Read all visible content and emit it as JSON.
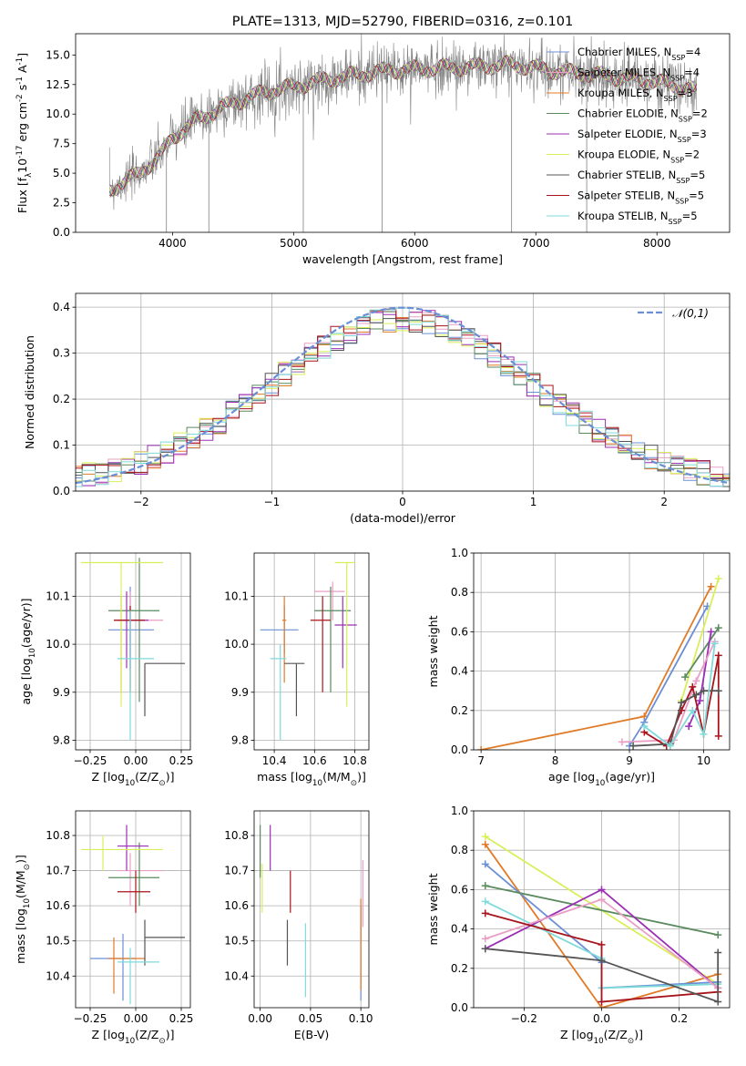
{
  "colors": {
    "Chabrier MILES": "#6b8fd6",
    "Salpeter MILES": "#e99fc4",
    "Kroupa MILES": "#e07b28",
    "Chabrier ELODIE": "#5a8a5e",
    "Salpeter ELODIE": "#9b2fb5",
    "Kroupa ELODIE": "#d9ef5a",
    "Chabrier STELIB": "#555555",
    "Salpeter STELIB": "#a8141c",
    "Kroupa STELIB": "#7fdada",
    "data": "#808080",
    "gauss": "#6a8fd6"
  },
  "chart_data": [
    {
      "id": "spectrum",
      "type": "line",
      "title": "PLATE=1313, MJD=52790, FIBERID=0316, z=0.101",
      "xlabel": "wavelength [Angstrom, rest frame]",
      "ylabel": "Flux [f$_λ$10$^{-17}$ erg cm$^{-2}$ s$^{-1}$ A$^{-1}$]",
      "xlim": [
        3200,
        8600
      ],
      "ylim": [
        0,
        16.8
      ],
      "xticks": [
        4000,
        5000,
        6000,
        7000,
        8000
      ],
      "yticks": [
        0.0,
        2.5,
        5.0,
        7.5,
        10.0,
        12.5,
        15.0
      ],
      "grid": false,
      "legend": [
        "Chabrier MILES, N$_{SSP}$=4",
        "Salpeter MILES, N$_{SSP}$=4",
        "Kroupa MILES, N$_{SSP}$=3",
        "Chabrier ELODIE, N$_{SSP}$=2",
        "Salpeter ELODIE, N$_{SSP}$=3",
        "Kroupa ELODIE, N$_{SSP}$=2",
        "Chabrier STELIB, N$_{SSP}$=5",
        "Salpeter STELIB, N$_{SSP}$=5",
        "Kroupa STELIB, N$_{SSP}$=5"
      ],
      "legend_placement": "right",
      "continuum": {
        "x": [
          3480,
          3700,
          3900,
          4000,
          4200,
          4400,
          4600,
          4800,
          5000,
          5200,
          5500,
          5800,
          6000,
          6200,
          6500,
          6800,
          7000,
          7200,
          7500,
          7800,
          8000,
          8200,
          8300
        ],
        "y": [
          3.6,
          4.8,
          6.5,
          8.0,
          9.5,
          10.5,
          11.3,
          12.0,
          12.3,
          12.8,
          13.3,
          13.7,
          13.8,
          13.9,
          14.0,
          14.2,
          13.9,
          13.6,
          13.3,
          13.0,
          12.7,
          12.3,
          12.0
        ]
      }
    },
    {
      "id": "residuals",
      "type": "line",
      "xlabel": "(data-model)/error",
      "ylabel": "Normed distribution",
      "xlim": [
        -2.5,
        2.5
      ],
      "ylim": [
        0,
        0.43
      ],
      "xticks": [
        -2,
        -1,
        0,
        1,
        2
      ],
      "yticks": [
        0.0,
        0.1,
        0.2,
        0.3,
        0.4
      ],
      "grid": true,
      "legend": [
        "$\\mathcal{N}(0,1)$"
      ],
      "legend_placement": "upper right"
    },
    {
      "id": "age-vs-Z",
      "type": "scatter",
      "xlabel": "Z [log$_{10}$(Z/Z$_\\odot$)]",
      "ylabel": "age  [log$_{10}$(age/yr)]",
      "xlim": [
        -0.33,
        0.3
      ],
      "ylim": [
        9.78,
        10.19
      ],
      "xticks": [
        -0.25,
        0.0,
        0.25
      ],
      "xticklabels": [
        "−0.25",
        "0.00",
        "0.25"
      ],
      "yticks": [
        9.8,
        9.9,
        10.0,
        10.1
      ],
      "grid": true,
      "points": [
        {
          "s": "Chabrier MILES",
          "x": -0.03,
          "y": 10.03,
          "xe": [
            -0.15,
            0.1
          ],
          "ye": [
            9.95,
            10.12
          ]
        },
        {
          "s": "Salpeter MILES",
          "x": -0.03,
          "y": 10.05,
          "xe": [
            -0.1,
            0.15
          ],
          "ye": [
            9.91,
            10.11
          ]
        },
        {
          "s": "Kroupa MILES",
          "x": -0.08,
          "y": 10.05,
          "xe": [
            -0.12,
            0.05
          ],
          "ye": [
            9.9,
            10.1
          ]
        },
        {
          "s": "Chabrier ELODIE",
          "x": 0.02,
          "y": 10.07,
          "xe": [
            -0.15,
            0.13
          ],
          "ye": [
            9.88,
            10.18
          ]
        },
        {
          "s": "Salpeter ELODIE",
          "x": -0.05,
          "y": 10.05,
          "xe": [
            -0.1,
            0.07
          ],
          "ye": [
            9.95,
            10.11
          ]
        },
        {
          "s": "Kroupa ELODIE",
          "x": -0.08,
          "y": 10.17,
          "xe": [
            -0.3,
            0.15
          ],
          "ye": [
            9.87,
            10.17
          ]
        },
        {
          "s": "Chabrier STELIB",
          "x": 0.05,
          "y": 9.96,
          "xe": [
            0.05,
            0.27
          ],
          "ye": [
            9.85,
            9.96
          ]
        },
        {
          "s": "Salpeter STELIB",
          "x": -0.03,
          "y": 10.05,
          "xe": [
            -0.12,
            0.05
          ],
          "ye": [
            9.9,
            10.08
          ]
        },
        {
          "s": "Kroupa STELIB",
          "x": -0.03,
          "y": 9.97,
          "xe": [
            -0.1,
            0.1
          ],
          "ye": [
            9.8,
            10.07
          ]
        }
      ]
    },
    {
      "id": "age-vs-mass",
      "type": "scatter",
      "xlabel": "mass [log$_{10}$(M/M$_\\odot$)]",
      "ylim": [
        9.78,
        10.19
      ],
      "xlim": [
        10.3,
        10.87
      ],
      "xticks": [
        10.4,
        10.6,
        10.8
      ],
      "xticklabels": [
        "10.4",
        "10.6",
        "10.8"
      ],
      "yticks": [
        9.8,
        9.9,
        10.0,
        10.1
      ],
      "grid": true,
      "points": [
        {
          "s": "Chabrier MILES",
          "x": 10.45,
          "y": 10.03,
          "xe": [
            10.33,
            10.52
          ],
          "ye": [
            9.98,
            10.08
          ]
        },
        {
          "s": "Salpeter MILES",
          "x": 10.69,
          "y": 10.11,
          "xe": [
            10.6,
            10.75
          ],
          "ye": [
            10.05,
            10.13
          ]
        },
        {
          "s": "Kroupa MILES",
          "x": 10.45,
          "y": 10.05,
          "xe": [
            10.44,
            10.46
          ],
          "ye": [
            9.92,
            10.1
          ]
        },
        {
          "s": "Chabrier ELODIE",
          "x": 10.68,
          "y": 10.07,
          "xe": [
            10.6,
            10.78
          ],
          "ye": [
            9.9,
            10.12
          ]
        },
        {
          "s": "Salpeter ELODIE",
          "x": 10.74,
          "y": 10.04,
          "xe": [
            10.7,
            10.81
          ],
          "ye": [
            9.95,
            10.1
          ]
        },
        {
          "s": "Kroupa ELODIE",
          "x": 10.76,
          "y": 10.17,
          "xe": [
            10.7,
            10.8
          ],
          "ye": [
            9.87,
            10.17
          ]
        },
        {
          "s": "Chabrier STELIB",
          "x": 10.51,
          "y": 9.96,
          "xe": [
            10.45,
            10.55
          ],
          "ye": [
            9.85,
            9.96
          ]
        },
        {
          "s": "Salpeter STELIB",
          "x": 10.64,
          "y": 10.05,
          "xe": [
            10.58,
            10.68
          ],
          "ye": [
            9.9,
            10.1
          ]
        },
        {
          "s": "Kroupa STELIB",
          "x": 10.43,
          "y": 9.97,
          "xe": [
            10.38,
            10.46
          ],
          "ye": [
            9.8,
            10.0
          ]
        }
      ]
    },
    {
      "id": "massweight-vs-age",
      "type": "line",
      "xlabel": "age  [log$_{10}$(age/yr)]",
      "ylabel": "mass weight",
      "xlim": [
        6.9,
        10.35
      ],
      "ylim": [
        0,
        1.0
      ],
      "xticks": [
        7,
        8,
        9,
        10
      ],
      "yticks": [
        0.0,
        0.2,
        0.4,
        0.6,
        0.8,
        1.0
      ],
      "grid": true,
      "series": [
        {
          "s": "Kroupa MILES",
          "x": [
            7.0,
            9.2,
            10.1
          ],
          "y": [
            0.0,
            0.17,
            0.83
          ]
        },
        {
          "s": "Chabrier MILES",
          "x": [
            9.0,
            9.2,
            10.05
          ],
          "y": [
            0.02,
            0.14,
            0.73
          ]
        },
        {
          "s": "Kroupa ELODIE",
          "x": [
            9.7,
            10.2
          ],
          "y": [
            0.25,
            0.87
          ]
        },
        {
          "s": "Chabrier ELODIE",
          "x": [
            9.75,
            10.2
          ],
          "y": [
            0.37,
            0.62
          ]
        },
        {
          "s": "Salpeter ELODIE",
          "x": [
            9.8,
            9.95,
            10.1
          ],
          "y": [
            0.12,
            0.25,
            0.6
          ]
        },
        {
          "s": "Salpeter MILES",
          "x": [
            8.9,
            9.6,
            9.9,
            10.15
          ],
          "y": [
            0.04,
            0.05,
            0.35,
            0.55
          ]
        },
        {
          "s": "Salpeter STELIB",
          "x": [
            9.2,
            9.5,
            9.7,
            9.85,
            10.0,
            10.2,
            10.2
          ],
          "y": [
            0.09,
            0.02,
            0.2,
            0.32,
            0.08,
            0.48,
            0.07
          ]
        },
        {
          "s": "Chabrier STELIB",
          "x": [
            9.05,
            9.55,
            9.7,
            9.9,
            10.0,
            10.2
          ],
          "y": [
            0.02,
            0.03,
            0.24,
            0.28,
            0.3,
            0.3
          ]
        },
        {
          "s": "Kroupa STELIB",
          "x": [
            9.2,
            9.55,
            9.85,
            10.0,
            10.15
          ],
          "y": [
            0.12,
            0.02,
            0.2,
            0.08,
            0.54
          ]
        }
      ]
    },
    {
      "id": "mass-vs-Z",
      "type": "scatter",
      "xlabel": "Z [log$_{10}$(Z/Z$_\\odot$)]",
      "ylabel": "mass [log$_{10}$(M/M$_\\odot$)]",
      "xlim": [
        -0.33,
        0.3
      ],
      "ylim": [
        10.31,
        10.87
      ],
      "xticks": [
        -0.25,
        0.0,
        0.25
      ],
      "xticklabels": [
        "−0.25",
        "0.00",
        "0.25"
      ],
      "yticks": [
        10.4,
        10.5,
        10.6,
        10.7,
        10.8
      ],
      "grid": true,
      "points": [
        {
          "s": "Chabrier MILES",
          "x": -0.07,
          "y": 10.45,
          "xe": [
            -0.25,
            0.0
          ],
          "ye": [
            10.33,
            10.52
          ]
        },
        {
          "s": "Salpeter MILES",
          "x": -0.03,
          "y": 10.7,
          "xe": [
            -0.1,
            0.15
          ],
          "ye": [
            10.6,
            10.75
          ]
        },
        {
          "s": "Kroupa MILES",
          "x": -0.12,
          "y": 10.45,
          "xe": [
            -0.15,
            0.05
          ],
          "ye": [
            10.35,
            10.51
          ]
        },
        {
          "s": "Chabrier ELODIE",
          "x": 0.02,
          "y": 10.68,
          "xe": [
            -0.15,
            0.13
          ],
          "ye": [
            10.6,
            10.78
          ]
        },
        {
          "s": "Salpeter ELODIE",
          "x": -0.05,
          "y": 10.77,
          "xe": [
            -0.1,
            0.07
          ],
          "ye": [
            10.7,
            10.83
          ]
        },
        {
          "s": "Kroupa ELODIE",
          "x": -0.18,
          "y": 10.76,
          "xe": [
            -0.3,
            0.15
          ],
          "ye": [
            10.7,
            10.8
          ]
        },
        {
          "s": "Chabrier STELIB",
          "x": 0.05,
          "y": 10.51,
          "xe": [
            0.05,
            0.27
          ],
          "ye": [
            10.43,
            10.56
          ]
        },
        {
          "s": "Salpeter STELIB",
          "x": 0.0,
          "y": 10.64,
          "xe": [
            -0.1,
            0.08
          ],
          "ye": [
            10.58,
            10.7
          ]
        },
        {
          "s": "Kroupa STELIB",
          "x": -0.03,
          "y": 10.44,
          "xe": [
            -0.1,
            0.13
          ],
          "ye": [
            10.32,
            10.48
          ]
        }
      ]
    },
    {
      "id": "mass-vs-ebv",
      "type": "scatter",
      "xlabel": "E(B-V)",
      "xlim": [
        -0.006,
        0.108
      ],
      "ylim": [
        10.31,
        10.87
      ],
      "xticks": [
        0.0,
        0.05,
        0.1
      ],
      "xticklabels": [
        "0.00",
        "0.05",
        "0.10"
      ],
      "yticks": [
        10.4,
        10.5,
        10.6,
        10.7,
        10.8
      ],
      "grid": true,
      "points": [
        {
          "s": "Chabrier MILES",
          "x": 0.1,
          "y": 10.4,
          "ye": [
            10.33,
            10.6
          ]
        },
        {
          "s": "Salpeter MILES",
          "x": 0.102,
          "y": 10.65,
          "ye": [
            10.54,
            10.73
          ]
        },
        {
          "s": "Kroupa MILES",
          "x": 0.1,
          "y": 10.5,
          "ye": [
            10.36,
            10.62
          ]
        },
        {
          "s": "Chabrier ELODIE",
          "x": 0.0,
          "y": 10.75,
          "ye": [
            10.68,
            10.83
          ]
        },
        {
          "s": "Salpeter ELODIE",
          "x": 0.01,
          "y": 10.78,
          "ye": [
            10.7,
            10.83
          ]
        },
        {
          "s": "Kroupa ELODIE",
          "x": 0.002,
          "y": 10.65,
          "ye": [
            10.58,
            10.72
          ]
        },
        {
          "s": "Chabrier STELIB",
          "x": 0.027,
          "y": 10.5,
          "ye": [
            10.43,
            10.56
          ]
        },
        {
          "s": "Salpeter STELIB",
          "x": 0.03,
          "y": 10.64,
          "ye": [
            10.58,
            10.7
          ]
        },
        {
          "s": "Kroupa STELIB",
          "x": 0.045,
          "y": 10.44,
          "ye": [
            10.34,
            10.55
          ]
        }
      ]
    },
    {
      "id": "massweight-vs-Z",
      "type": "line",
      "xlabel": "Z [log$_{10}$(Z/Z$_\\odot$)]",
      "ylabel": "mass weight",
      "xlim": [
        -0.33,
        0.33
      ],
      "ylim": [
        0,
        1.0
      ],
      "xticks": [
        -0.2,
        0.0,
        0.2
      ],
      "xticklabels": [
        "−0.2",
        "0.0",
        "0.2"
      ],
      "yticks": [
        0.0,
        0.2,
        0.4,
        0.6,
        0.8,
        1.0
      ],
      "grid": true,
      "series": [
        {
          "s": "Kroupa ELODIE",
          "x": [
            -0.3,
            0.3
          ],
          "y": [
            0.87,
            0.12
          ]
        },
        {
          "s": "Kroupa MILES",
          "x": [
            -0.3,
            0.0,
            0.3
          ],
          "y": [
            0.83,
            0.0,
            0.17
          ]
        },
        {
          "s": "Chabrier MILES",
          "x": [
            -0.3,
            0.0,
            0.0,
            0.3
          ],
          "y": [
            0.73,
            0.23,
            0.1,
            0.13
          ]
        },
        {
          "s": "Chabrier ELODIE",
          "x": [
            -0.3,
            0.3
          ],
          "y": [
            0.62,
            0.37
          ]
        },
        {
          "s": "Kroupa STELIB",
          "x": [
            -0.3,
            0.0,
            0.0,
            0.3
          ],
          "y": [
            0.54,
            0.25,
            0.1,
            0.12
          ]
        },
        {
          "s": "Salpeter ELODIE",
          "x": [
            -0.3,
            0.0,
            0.3
          ],
          "y": [
            0.3,
            0.6,
            0.1
          ]
        },
        {
          "s": "Salpeter MILES",
          "x": [
            -0.3,
            0.0,
            0.3
          ],
          "y": [
            0.35,
            0.55,
            0.1
          ]
        },
        {
          "s": "Salpeter STELIB",
          "x": [
            -0.3,
            0.0,
            0.0,
            0.3
          ],
          "y": [
            0.48,
            0.32,
            0.03,
            0.08
          ]
        },
        {
          "s": "Chabrier STELIB",
          "x": [
            -0.3,
            0.0,
            0.3,
            0.3
          ],
          "y": [
            0.3,
            0.24,
            0.03,
            0.28
          ]
        }
      ]
    }
  ]
}
